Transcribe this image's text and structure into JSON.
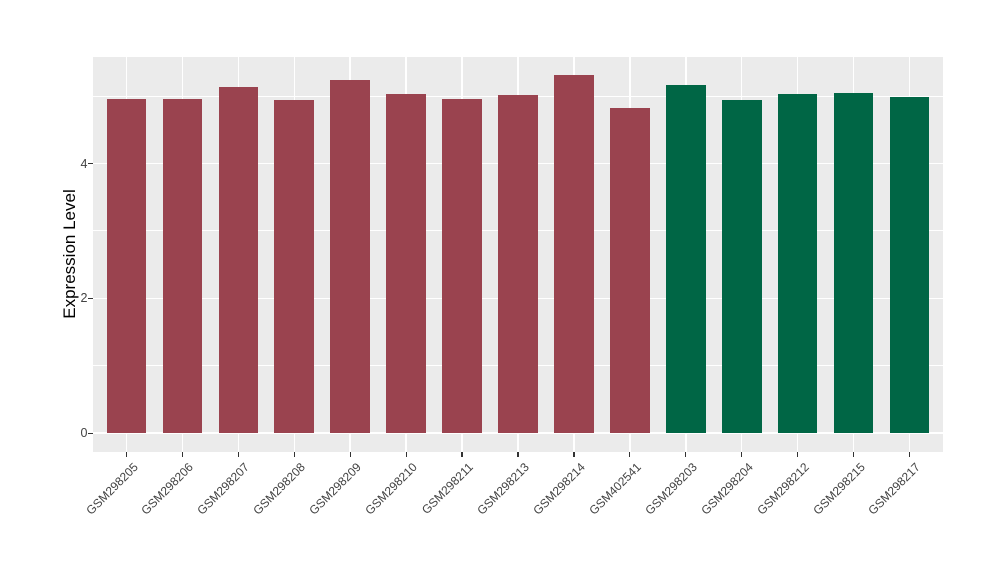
{
  "chart_data": {
    "type": "bar",
    "title": "",
    "ylabel": "Expression Level",
    "xlabel": "",
    "ylim": [
      -0.28,
      5.58
    ],
    "yticks": [
      0,
      2,
      4
    ],
    "yticks_minor": [
      1,
      3,
      5
    ],
    "grid": true,
    "legend": false,
    "panel_bg": "#EBEBEB",
    "grid_color": "#FFFFFF",
    "axis_text_color": "#424242",
    "group_colors": {
      "maroon": "#9A434F",
      "green": "#006645"
    },
    "bars": [
      {
        "label": "GSM298205",
        "value": 4.96,
        "color": "#9A434F"
      },
      {
        "label": "GSM298206",
        "value": 4.96,
        "color": "#9A434F"
      },
      {
        "label": "GSM298207",
        "value": 5.13,
        "color": "#9A434F"
      },
      {
        "label": "GSM298208",
        "value": 4.94,
        "color": "#9A434F"
      },
      {
        "label": "GSM298209",
        "value": 5.24,
        "color": "#9A434F"
      },
      {
        "label": "GSM298210",
        "value": 5.03,
        "color": "#9A434F"
      },
      {
        "label": "GSM298211",
        "value": 4.96,
        "color": "#9A434F"
      },
      {
        "label": "GSM298213",
        "value": 5.02,
        "color": "#9A434F"
      },
      {
        "label": "GSM298214",
        "value": 5.31,
        "color": "#9A434F"
      },
      {
        "label": "GSM402541",
        "value": 4.82,
        "color": "#9A434F"
      },
      {
        "label": "GSM298203",
        "value": 5.16,
        "color": "#006645"
      },
      {
        "label": "GSM298204",
        "value": 4.94,
        "color": "#006645"
      },
      {
        "label": "GSM298212",
        "value": 5.03,
        "color": "#006645"
      },
      {
        "label": "GSM298215",
        "value": 5.05,
        "color": "#006645"
      },
      {
        "label": "GSM298217",
        "value": 4.99,
        "color": "#006645"
      }
    ]
  }
}
